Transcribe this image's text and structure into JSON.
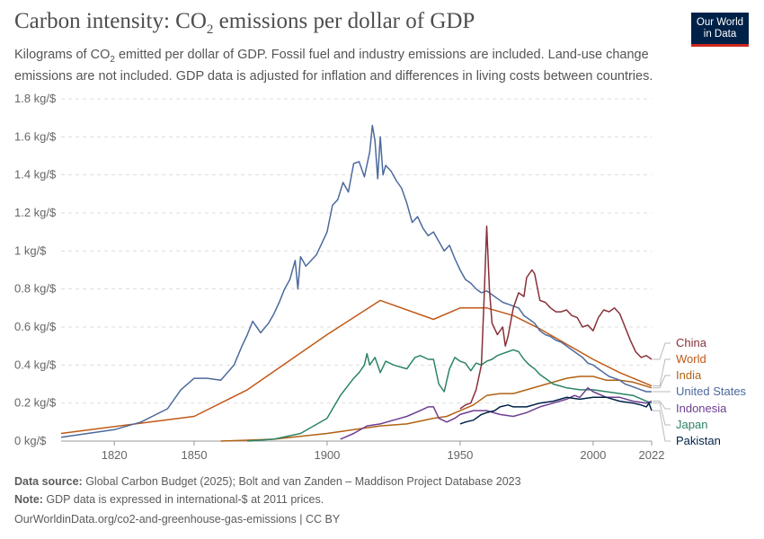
{
  "header": {
    "title_prefix": "Carbon intensity: CO",
    "title_sub": "2",
    "title_suffix": " emissions per dollar of GDP",
    "subtitle_prefix": "Kilograms of CO",
    "subtitle_sub": "2",
    "subtitle_suffix": " emitted per dollar of GDP. Fossil fuel and industry emissions are included. Land-use change emissions are not included. GDP data is adjusted for inflation and differences in living costs between countries.",
    "logo_line1": "Our World",
    "logo_line2": "in Data"
  },
  "footer": {
    "source_label": "Data source:",
    "source_text": " Global Carbon Budget (2025); Bolt and van Zanden – Maddison Project Database 2023",
    "note_label": "Note:",
    "note_text": " GDP data is expressed in international-$ at 2011 prices.",
    "url": "OurWorldinData.org/co2-and-greenhouse-gas-emissions | CC BY"
  },
  "chart_data": {
    "type": "line",
    "xlim": [
      1800,
      2022
    ],
    "ylim": [
      0,
      1.8
    ],
    "x_ticks": [
      1820,
      1850,
      1900,
      1950,
      2000,
      2022
    ],
    "y_ticks": [
      0,
      0.2,
      0.4,
      0.6,
      0.8,
      1.0,
      1.2,
      1.4,
      1.6,
      1.8
    ],
    "y_tick_labels": [
      "0 kg/$",
      "0.2 kg/$",
      "0.4 kg/$",
      "0.6 kg/$",
      "0.8 kg/$",
      "1 kg/$",
      "1.2 kg/$",
      "1.4 kg/$",
      "1.6 kg/$",
      "1.8 kg/$"
    ],
    "grid": "horizontal dashed",
    "legend": "right, labels at line ends",
    "series": [
      {
        "name": "China",
        "color": "#883039",
        "points": [
          [
            1950,
            0.17
          ],
          [
            1952,
            0.19
          ],
          [
            1954,
            0.2
          ],
          [
            1956,
            0.27
          ],
          [
            1958,
            0.4
          ],
          [
            1959,
            0.75
          ],
          [
            1960,
            1.13
          ],
          [
            1961,
            0.8
          ],
          [
            1962,
            0.62
          ],
          [
            1964,
            0.56
          ],
          [
            1966,
            0.6
          ],
          [
            1967,
            0.5
          ],
          [
            1968,
            0.55
          ],
          [
            1970,
            0.7
          ],
          [
            1972,
            0.78
          ],
          [
            1974,
            0.76
          ],
          [
            1975,
            0.86
          ],
          [
            1977,
            0.9
          ],
          [
            1978,
            0.88
          ],
          [
            1980,
            0.74
          ],
          [
            1982,
            0.73
          ],
          [
            1984,
            0.7
          ],
          [
            1986,
            0.68
          ],
          [
            1988,
            0.68
          ],
          [
            1990,
            0.69
          ],
          [
            1992,
            0.66
          ],
          [
            1994,
            0.65
          ],
          [
            1996,
            0.6
          ],
          [
            1998,
            0.61
          ],
          [
            2000,
            0.58
          ],
          [
            2002,
            0.65
          ],
          [
            2004,
            0.69
          ],
          [
            2006,
            0.68
          ],
          [
            2008,
            0.7
          ],
          [
            2010,
            0.67
          ],
          [
            2012,
            0.6
          ],
          [
            2014,
            0.53
          ],
          [
            2016,
            0.47
          ],
          [
            2018,
            0.44
          ],
          [
            2020,
            0.45
          ],
          [
            2022,
            0.43
          ]
        ]
      },
      {
        "name": "World",
        "color": "#c05917",
        "points": [
          [
            1800,
            0.04
          ],
          [
            1850,
            0.13
          ],
          [
            1870,
            0.27
          ],
          [
            1900,
            0.56
          ],
          [
            1920,
            0.74
          ],
          [
            1940,
            0.64
          ],
          [
            1950,
            0.7
          ],
          [
            1960,
            0.7
          ],
          [
            1970,
            0.66
          ],
          [
            1980,
            0.59
          ],
          [
            1990,
            0.51
          ],
          [
            2000,
            0.43
          ],
          [
            2010,
            0.36
          ],
          [
            2022,
            0.29
          ]
        ]
      },
      {
        "name": "India",
        "color": "#b16214",
        "points": [
          [
            1860,
            0.0
          ],
          [
            1880,
            0.01
          ],
          [
            1900,
            0.04
          ],
          [
            1910,
            0.06
          ],
          [
            1920,
            0.08
          ],
          [
            1930,
            0.09
          ],
          [
            1940,
            0.12
          ],
          [
            1945,
            0.13
          ],
          [
            1950,
            0.16
          ],
          [
            1955,
            0.19
          ],
          [
            1960,
            0.24
          ],
          [
            1965,
            0.25
          ],
          [
            1970,
            0.25
          ],
          [
            1975,
            0.27
          ],
          [
            1980,
            0.29
          ],
          [
            1985,
            0.31
          ],
          [
            1990,
            0.33
          ],
          [
            1995,
            0.34
          ],
          [
            2000,
            0.34
          ],
          [
            2005,
            0.32
          ],
          [
            2010,
            0.32
          ],
          [
            2015,
            0.31
          ],
          [
            2022,
            0.28
          ]
        ]
      },
      {
        "name": "United States",
        "color": "#4c6a9c",
        "points": [
          [
            1800,
            0.02
          ],
          [
            1810,
            0.04
          ],
          [
            1820,
            0.06
          ],
          [
            1830,
            0.1
          ],
          [
            1840,
            0.17
          ],
          [
            1845,
            0.27
          ],
          [
            1850,
            0.33
          ],
          [
            1855,
            0.33
          ],
          [
            1860,
            0.32
          ],
          [
            1865,
            0.4
          ],
          [
            1868,
            0.5
          ],
          [
            1870,
            0.56
          ],
          [
            1872,
            0.63
          ],
          [
            1875,
            0.57
          ],
          [
            1878,
            0.62
          ],
          [
            1880,
            0.67
          ],
          [
            1882,
            0.73
          ],
          [
            1884,
            0.8
          ],
          [
            1886,
            0.85
          ],
          [
            1888,
            0.95
          ],
          [
            1889,
            0.8
          ],
          [
            1890,
            0.97
          ],
          [
            1892,
            0.92
          ],
          [
            1894,
            0.95
          ],
          [
            1896,
            0.98
          ],
          [
            1898,
            1.04
          ],
          [
            1900,
            1.1
          ],
          [
            1902,
            1.24
          ],
          [
            1904,
            1.27
          ],
          [
            1906,
            1.36
          ],
          [
            1908,
            1.31
          ],
          [
            1910,
            1.46
          ],
          [
            1912,
            1.47
          ],
          [
            1914,
            1.39
          ],
          [
            1916,
            1.52
          ],
          [
            1917,
            1.66
          ],
          [
            1918,
            1.58
          ],
          [
            1919,
            1.38
          ],
          [
            1920,
            1.6
          ],
          [
            1921,
            1.4
          ],
          [
            1922,
            1.45
          ],
          [
            1924,
            1.42
          ],
          [
            1926,
            1.37
          ],
          [
            1928,
            1.33
          ],
          [
            1930,
            1.25
          ],
          [
            1932,
            1.15
          ],
          [
            1934,
            1.18
          ],
          [
            1936,
            1.12
          ],
          [
            1938,
            1.08
          ],
          [
            1940,
            1.1
          ],
          [
            1942,
            1.05
          ],
          [
            1944,
            1.0
          ],
          [
            1946,
            1.03
          ],
          [
            1948,
            0.96
          ],
          [
            1950,
            0.9
          ],
          [
            1952,
            0.85
          ],
          [
            1954,
            0.83
          ],
          [
            1956,
            0.8
          ],
          [
            1958,
            0.78
          ],
          [
            1960,
            0.79
          ],
          [
            1962,
            0.77
          ],
          [
            1964,
            0.75
          ],
          [
            1966,
            0.73
          ],
          [
            1968,
            0.72
          ],
          [
            1970,
            0.71
          ],
          [
            1972,
            0.7
          ],
          [
            1974,
            0.66
          ],
          [
            1976,
            0.64
          ],
          [
            1978,
            0.62
          ],
          [
            1980,
            0.58
          ],
          [
            1982,
            0.56
          ],
          [
            1984,
            0.55
          ],
          [
            1986,
            0.53
          ],
          [
            1988,
            0.52
          ],
          [
            1990,
            0.5
          ],
          [
            1992,
            0.48
          ],
          [
            1994,
            0.46
          ],
          [
            1996,
            0.44
          ],
          [
            1998,
            0.41
          ],
          [
            2000,
            0.4
          ],
          [
            2002,
            0.38
          ],
          [
            2004,
            0.36
          ],
          [
            2006,
            0.34
          ],
          [
            2008,
            0.33
          ],
          [
            2010,
            0.32
          ],
          [
            2012,
            0.3
          ],
          [
            2014,
            0.29
          ],
          [
            2016,
            0.28
          ],
          [
            2018,
            0.27
          ],
          [
            2020,
            0.26
          ],
          [
            2022,
            0.26
          ]
        ]
      },
      {
        "name": "Indonesia",
        "color": "#6d3e91",
        "points": [
          [
            1905,
            0.01
          ],
          [
            1910,
            0.04
          ],
          [
            1915,
            0.08
          ],
          [
            1920,
            0.09
          ],
          [
            1925,
            0.11
          ],
          [
            1930,
            0.13
          ],
          [
            1935,
            0.16
          ],
          [
            1938,
            0.18
          ],
          [
            1940,
            0.18
          ],
          [
            1942,
            0.12
          ],
          [
            1945,
            0.1
          ],
          [
            1948,
            0.12
          ],
          [
            1950,
            0.14
          ],
          [
            1955,
            0.16
          ],
          [
            1960,
            0.16
          ],
          [
            1965,
            0.14
          ],
          [
            1970,
            0.13
          ],
          [
            1975,
            0.15
          ],
          [
            1980,
            0.18
          ],
          [
            1985,
            0.2
          ],
          [
            1990,
            0.22
          ],
          [
            1993,
            0.24
          ],
          [
            1995,
            0.23
          ],
          [
            1998,
            0.28
          ],
          [
            2000,
            0.26
          ],
          [
            2005,
            0.23
          ],
          [
            2010,
            0.23
          ],
          [
            2015,
            0.21
          ],
          [
            2020,
            0.2
          ],
          [
            2022,
            0.21
          ]
        ]
      },
      {
        "name": "Japan",
        "color": "#2c8465",
        "points": [
          [
            1870,
            0.0
          ],
          [
            1880,
            0.01
          ],
          [
            1890,
            0.04
          ],
          [
            1900,
            0.12
          ],
          [
            1905,
            0.24
          ],
          [
            1910,
            0.33
          ],
          [
            1912,
            0.36
          ],
          [
            1914,
            0.4
          ],
          [
            1915,
            0.46
          ],
          [
            1916,
            0.4
          ],
          [
            1918,
            0.44
          ],
          [
            1920,
            0.36
          ],
          [
            1922,
            0.42
          ],
          [
            1925,
            0.4
          ],
          [
            1930,
            0.38
          ],
          [
            1933,
            0.44
          ],
          [
            1935,
            0.45
          ],
          [
            1938,
            0.43
          ],
          [
            1940,
            0.43
          ],
          [
            1942,
            0.3
          ],
          [
            1944,
            0.26
          ],
          [
            1946,
            0.38
          ],
          [
            1948,
            0.44
          ],
          [
            1950,
            0.42
          ],
          [
            1952,
            0.41
          ],
          [
            1954,
            0.37
          ],
          [
            1956,
            0.41
          ],
          [
            1958,
            0.4
          ],
          [
            1960,
            0.42
          ],
          [
            1962,
            0.43
          ],
          [
            1964,
            0.45
          ],
          [
            1966,
            0.46
          ],
          [
            1968,
            0.47
          ],
          [
            1970,
            0.48
          ],
          [
            1972,
            0.47
          ],
          [
            1974,
            0.43
          ],
          [
            1976,
            0.4
          ],
          [
            1978,
            0.38
          ],
          [
            1980,
            0.35
          ],
          [
            1985,
            0.3
          ],
          [
            1990,
            0.28
          ],
          [
            1995,
            0.27
          ],
          [
            2000,
            0.27
          ],
          [
            2005,
            0.26
          ],
          [
            2010,
            0.25
          ],
          [
            2015,
            0.24
          ],
          [
            2020,
            0.21
          ],
          [
            2022,
            0.2
          ]
        ]
      },
      {
        "name": "Pakistan",
        "color": "#002147",
        "points": [
          [
            1950,
            0.09
          ],
          [
            1952,
            0.1
          ],
          [
            1955,
            0.11
          ],
          [
            1958,
            0.14
          ],
          [
            1960,
            0.15
          ],
          [
            1963,
            0.16
          ],
          [
            1965,
            0.18
          ],
          [
            1968,
            0.19
          ],
          [
            1970,
            0.18
          ],
          [
            1975,
            0.18
          ],
          [
            1980,
            0.2
          ],
          [
            1985,
            0.21
          ],
          [
            1990,
            0.23
          ],
          [
            1995,
            0.22
          ],
          [
            2000,
            0.23
          ],
          [
            2005,
            0.23
          ],
          [
            2010,
            0.21
          ],
          [
            2015,
            0.2
          ],
          [
            2018,
            0.19
          ],
          [
            2020,
            0.18
          ],
          [
            2021,
            0.2
          ],
          [
            2022,
            0.16
          ]
        ]
      }
    ]
  }
}
